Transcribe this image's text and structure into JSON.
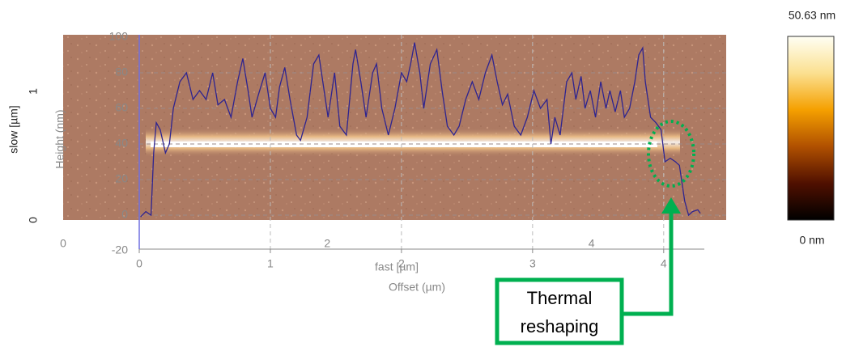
{
  "chart_data": {
    "type": "line",
    "x_label": "Offset (µm)",
    "y_label": "Height (nm)",
    "x": [
      0.01,
      0.05,
      0.09,
      0.11,
      0.13,
      0.16,
      0.2,
      0.23,
      0.26,
      0.31,
      0.36,
      0.41,
      0.46,
      0.51,
      0.56,
      0.6,
      0.65,
      0.7,
      0.75,
      0.79,
      0.83,
      0.86,
      0.91,
      0.96,
      1.0,
      1.04,
      1.07,
      1.11,
      1.15,
      1.2,
      1.23,
      1.28,
      1.33,
      1.37,
      1.41,
      1.44,
      1.49,
      1.53,
      1.58,
      1.63,
      1.65,
      1.69,
      1.73,
      1.78,
      1.81,
      1.85,
      1.9,
      1.95,
      2.0,
      2.04,
      2.07,
      2.1,
      2.14,
      2.17,
      2.22,
      2.27,
      2.31,
      2.35,
      2.4,
      2.44,
      2.49,
      2.54,
      2.59,
      2.64,
      2.69,
      2.73,
      2.77,
      2.81,
      2.86,
      2.91,
      2.96,
      3.01,
      3.06,
      3.11,
      3.14,
      3.17,
      3.21,
      3.26,
      3.3,
      3.33,
      3.37,
      3.4,
      3.44,
      3.48,
      3.52,
      3.56,
      3.59,
      3.63,
      3.67,
      3.7,
      3.74,
      3.78,
      3.81,
      3.84,
      3.86,
      3.9,
      3.94,
      3.98,
      4.01,
      4.05,
      4.09,
      4.12,
      4.16,
      4.19,
      4.22,
      4.26,
      4.28
    ],
    "series": [
      {
        "color": "#2e2490",
        "values": [
          -1,
          2,
          0,
          35,
          52,
          48,
          35,
          40,
          60,
          75,
          80,
          65,
          70,
          65,
          80,
          62,
          65,
          55,
          75,
          88,
          70,
          55,
          68,
          80,
          60,
          55,
          72,
          83,
          65,
          45,
          42,
          55,
          85,
          90,
          70,
          55,
          80,
          50,
          45,
          85,
          93,
          75,
          55,
          80,
          85,
          60,
          45,
          60,
          80,
          75,
          85,
          97,
          80,
          60,
          85,
          93,
          70,
          50,
          45,
          50,
          65,
          75,
          65,
          80,
          90,
          75,
          62,
          68,
          50,
          45,
          55,
          70,
          60,
          65,
          40,
          55,
          45,
          75,
          80,
          65,
          78,
          60,
          70,
          55,
          75,
          60,
          70,
          58,
          70,
          55,
          60,
          75,
          90,
          94,
          75,
          55,
          52,
          48,
          30,
          32,
          30,
          28,
          8,
          0,
          2,
          3,
          1
        ]
      }
    ],
    "xlim": [
      0,
      4.31
    ],
    "xticks": [
      0,
      1,
      2,
      3,
      4
    ],
    "ylim": [
      -20,
      100
    ],
    "yticks": [
      -20,
      0,
      20,
      40,
      60,
      80,
      100
    ],
    "grid": true,
    "image": {
      "x_label": "fast [µm]",
      "y_label": "slow [µm]",
      "xlim": [
        0,
        5.02
      ],
      "xticks": [
        0,
        2,
        4
      ],
      "ylim": [
        0,
        1.44
      ],
      "yticks": [
        0,
        1
      ]
    },
    "colorbar": {
      "max_label": "50.63 nm",
      "min_label": "0 nm"
    },
    "annotation": [
      "Thermal",
      "reshaping"
    ]
  }
}
